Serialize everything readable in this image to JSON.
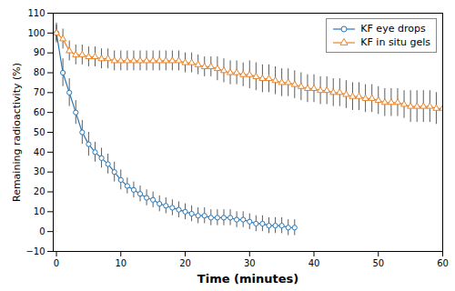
{
  "chart_data": {
    "type": "line",
    "xlabel": "Time (minutes)",
    "ylabel": "Remaining radioactivity (%)",
    "xlim": [
      -0.5,
      60
    ],
    "ylim": [
      -10,
      110
    ],
    "xticks": [
      0,
      10,
      20,
      30,
      40,
      50,
      60
    ],
    "yticks": [
      -10,
      0,
      10,
      20,
      30,
      40,
      50,
      60,
      70,
      80,
      90,
      100,
      110
    ],
    "legend": "upper right",
    "grid": false,
    "series": [
      {
        "name": "KF eye drops",
        "color": "#2878b8",
        "marker": "circle",
        "x": [
          0,
          1,
          2,
          3,
          4,
          5,
          6,
          7,
          8,
          9,
          10,
          11,
          12,
          13,
          14,
          15,
          16,
          17,
          18,
          19,
          20,
          21,
          22,
          23,
          24,
          25,
          26,
          27,
          28,
          29,
          30,
          31,
          32,
          33,
          34,
          35,
          36,
          37
        ],
        "values": [
          100,
          80,
          70,
          60,
          50,
          44,
          40,
          37,
          34,
          30,
          26,
          23,
          21,
          19,
          17,
          16,
          14,
          13,
          12,
          11,
          10,
          9,
          8,
          8,
          7,
          7,
          7,
          7,
          6,
          6,
          5,
          4,
          4,
          3,
          3,
          3,
          2,
          2
        ],
        "errors": [
          4,
          7,
          7,
          6,
          6,
          6,
          5,
          5,
          5,
          5,
          5,
          4,
          4,
          4,
          4,
          4,
          4,
          4,
          4,
          4,
          4,
          4,
          4,
          4,
          4,
          4,
          4,
          4,
          4,
          4,
          4,
          4,
          4,
          4,
          4,
          4,
          4,
          4
        ]
      },
      {
        "name": "KF in situ gels",
        "color": "#e8832a",
        "marker": "triangle",
        "x": [
          0,
          1,
          2,
          3,
          4,
          5,
          6,
          7,
          8,
          9,
          10,
          11,
          12,
          13,
          14,
          15,
          16,
          17,
          18,
          19,
          20,
          21,
          22,
          23,
          24,
          25,
          26,
          27,
          28,
          29,
          30,
          31,
          32,
          33,
          34,
          35,
          36,
          37,
          38,
          39,
          40,
          41,
          42,
          43,
          44,
          45,
          46,
          47,
          48,
          49,
          50,
          51,
          52,
          53,
          54,
          55,
          56,
          57,
          58,
          59,
          60
        ],
        "values": [
          100,
          97,
          91,
          89,
          89,
          88,
          88,
          87,
          87,
          86,
          86,
          86,
          86,
          86,
          86,
          86,
          86,
          86,
          86,
          86,
          85,
          85,
          84,
          83,
          83,
          82,
          81,
          80,
          80,
          79,
          79,
          78,
          77,
          77,
          76,
          75,
          75,
          74,
          73,
          72,
          72,
          71,
          71,
          70,
          70,
          69,
          68,
          68,
          67,
          67,
          66,
          65,
          65,
          65,
          64,
          63,
          63,
          63,
          63,
          62,
          62
        ],
        "errors": [
          5,
          5,
          5,
          5,
          5,
          5,
          5,
          5,
          5,
          5,
          5,
          5,
          5,
          5,
          5,
          5,
          5,
          5,
          5,
          5,
          5,
          5,
          5,
          5,
          5,
          6,
          6,
          6,
          6,
          6,
          7,
          7,
          7,
          7,
          7,
          7,
          7,
          7,
          7,
          7,
          7,
          7,
          7,
          7,
          7,
          7,
          7,
          7,
          7,
          7,
          7,
          7,
          7,
          7,
          7,
          8,
          8,
          8,
          8,
          8,
          8
        ]
      }
    ]
  }
}
